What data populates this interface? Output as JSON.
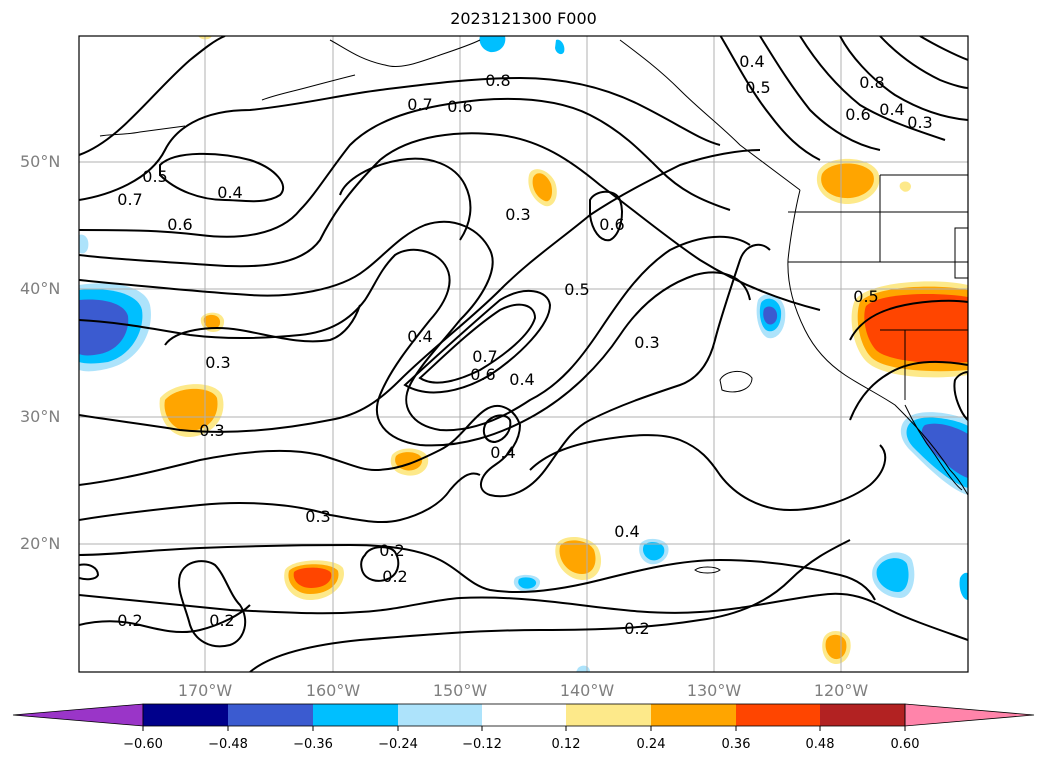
{
  "title": "2023121300 F000",
  "latitude_labels": [
    "50°N",
    "40°N",
    "30°N",
    "20°N"
  ],
  "longitude_labels": [
    "170°W",
    "160°W",
    "150°W",
    "140°W",
    "130°W",
    "120°W"
  ],
  "colorbar": {
    "ticks": [
      "−0.60",
      "−0.48",
      "−0.36",
      "−0.24",
      "−0.12",
      "0.12",
      "0.24",
      "0.36",
      "0.48",
      "0.60"
    ],
    "colors": [
      "#9a35c8",
      "#00008b",
      "#3b5bd0",
      "#00bfff",
      "#ade3fb",
      "#ffffff",
      "#fde98a",
      "#ffa500",
      "#ff4500",
      "#b22222",
      "#ff84aa"
    ]
  },
  "contour_labels": [
    "0.8",
    "0.7",
    "0.6",
    "0.4",
    "0.5",
    "0.8",
    "0.6",
    "0.4",
    "0.3",
    "0.5",
    "0.7",
    "0.6",
    "0.4",
    "0.3",
    "0.6",
    "0.5",
    "0.4",
    "0.7",
    "0.6",
    "0.4",
    "0.3",
    "0.3",
    "0.3",
    "0.5",
    "0.4",
    "0.3",
    "0.2",
    "0.4",
    "0.2",
    "0.2",
    "0.2",
    "0.2"
  ]
}
